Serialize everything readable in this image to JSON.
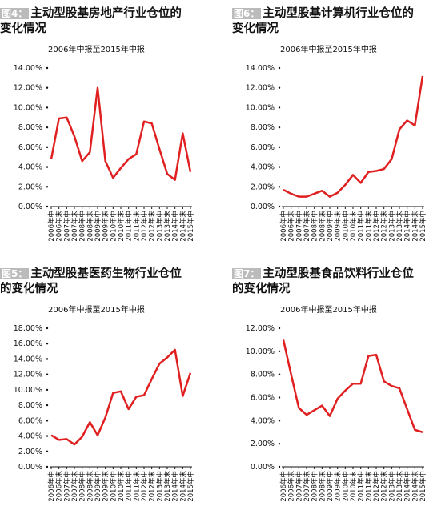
{
  "chart_data": [
    {
      "type": "line",
      "label": "图4：",
      "title": "主动型股基房地产行业仓位的变化情况",
      "subtitle": "2006年中报至2015年中报",
      "categories": [
        "2006年中",
        "2006年末",
        "2007年中",
        "2007年末",
        "2008年中",
        "2008年末",
        "2009年中",
        "2009年末",
        "2010年中",
        "2010年末",
        "2011年中",
        "2011年末",
        "2012年中",
        "2012年末",
        "2013年中",
        "2013年末",
        "2014年中",
        "2014年末",
        "2015年中"
      ],
      "values": [
        4.8,
        8.9,
        9.0,
        7.1,
        4.6,
        5.5,
        12.0,
        4.6,
        2.9,
        3.9,
        4.8,
        5.3,
        8.6,
        8.4,
        5.8,
        3.3,
        2.7,
        7.4,
        3.5
      ],
      "color": "#e02020",
      "ylim": [
        0,
        14
      ],
      "yticks": [
        {
          "value": 0,
          "label": "0.00%"
        },
        {
          "value": 2,
          "label": "2.00%"
        },
        {
          "value": 4,
          "label": "4.00%"
        },
        {
          "value": 6,
          "label": "6.00%"
        },
        {
          "value": 8,
          "label": "8.00%"
        },
        {
          "value": 10,
          "label": "10.00%"
        },
        {
          "value": 12,
          "label": "12.00%"
        },
        {
          "value": 14,
          "label": "14.00%"
        }
      ]
    },
    {
      "type": "line",
      "label": "图6：",
      "title": "主动型股基计算机行业仓位的变化情况",
      "subtitle": "2006年中报至2015年中报",
      "categories": [
        "2006年中",
        "2006年末",
        "2007年中",
        "2007年末",
        "2008年中",
        "2008年末",
        "2009年中",
        "2009年末",
        "2010年中",
        "2010年末",
        "2011年中",
        "2011年末",
        "2012年中",
        "2012年末",
        "2013年中",
        "2013年末",
        "2014年中",
        "2014年末",
        "2015年中"
      ],
      "values": [
        1.7,
        1.3,
        1.0,
        1.0,
        1.3,
        1.6,
        1.0,
        1.4,
        2.2,
        3.2,
        2.4,
        3.5,
        3.6,
        3.8,
        4.8,
        7.8,
        8.7,
        8.2,
        13.2
      ],
      "color": "#e02020",
      "ylim": [
        0,
        14
      ],
      "yticks": [
        {
          "value": 0,
          "label": "0.00%"
        },
        {
          "value": 2,
          "label": "2.00%"
        },
        {
          "value": 4,
          "label": "4.00%"
        },
        {
          "value": 6,
          "label": "6.00%"
        },
        {
          "value": 8,
          "label": "8.00%"
        },
        {
          "value": 10,
          "label": "10.00%"
        },
        {
          "value": 12,
          "label": "12.00%"
        },
        {
          "value": 14,
          "label": "14.00%"
        }
      ]
    },
    {
      "type": "line",
      "label": "图5：",
      "title": "主动型股基医药生物行业仓位的变化情况",
      "subtitle": "2006年中报至2015年中报",
      "categories": [
        "2006年中",
        "2006年末",
        "2007年中",
        "2007年末",
        "2008年中",
        "2008年末",
        "2009年中",
        "2009年末",
        "2010年中",
        "2010年末",
        "2011年中",
        "2011年末",
        "2012年中",
        "2012年末",
        "2013年中",
        "2013年末",
        "2014年中",
        "2014年末",
        "2015年中"
      ],
      "values": [
        4.1,
        3.5,
        3.6,
        2.9,
        3.9,
        5.8,
        4.1,
        6.4,
        9.6,
        9.8,
        7.5,
        9.1,
        9.3,
        11.4,
        13.4,
        14.2,
        15.2,
        9.2,
        12.2
      ],
      "color": "#e02020",
      "ylim": [
        0,
        18
      ],
      "yticks": [
        {
          "value": 0,
          "label": "0.00%"
        },
        {
          "value": 2,
          "label": "2.00%"
        },
        {
          "value": 4,
          "label": "4.00%"
        },
        {
          "value": 6,
          "label": "6.00%"
        },
        {
          "value": 8,
          "label": "8.00%"
        },
        {
          "value": 10,
          "label": "10.00%"
        },
        {
          "value": 12,
          "label": "12.00%"
        },
        {
          "value": 14,
          "label": "14.00%"
        },
        {
          "value": 16,
          "label": "16.00%"
        },
        {
          "value": 18,
          "label": "18.00%"
        }
      ]
    },
    {
      "type": "line",
      "label": "图7：",
      "title": "主动型股基食品饮料行业仓位的变化情况",
      "subtitle": "2006年中报至2015年中报",
      "categories": [
        "2006年中",
        "2006年末",
        "2007年中",
        "2007年末",
        "2008年中",
        "2008年末",
        "2009年中",
        "2009年末",
        "2010年中",
        "2010年末",
        "2011年中",
        "2011年末",
        "2012年中",
        "2012年末",
        "2013年中",
        "2013年末",
        "2014年中",
        "2014年末",
        "2015年中"
      ],
      "values": [
        11.0,
        8.0,
        5.1,
        4.5,
        4.9,
        5.3,
        4.4,
        5.9,
        6.6,
        7.2,
        7.2,
        9.6,
        9.7,
        7.4,
        7.0,
        6.8,
        5.0,
        3.2,
        3.0
      ],
      "color": "#e02020",
      "ylim": [
        0,
        12
      ],
      "yticks": [
        {
          "value": 0,
          "label": "0.00%"
        },
        {
          "value": 2,
          "label": "2.00%"
        },
        {
          "value": 4,
          "label": "4.00%"
        },
        {
          "value": 6,
          "label": "6.00%"
        },
        {
          "value": 8,
          "label": "8.00%"
        },
        {
          "value": 10,
          "label": "10.00%"
        },
        {
          "value": 12,
          "label": "12.00%"
        }
      ]
    }
  ]
}
